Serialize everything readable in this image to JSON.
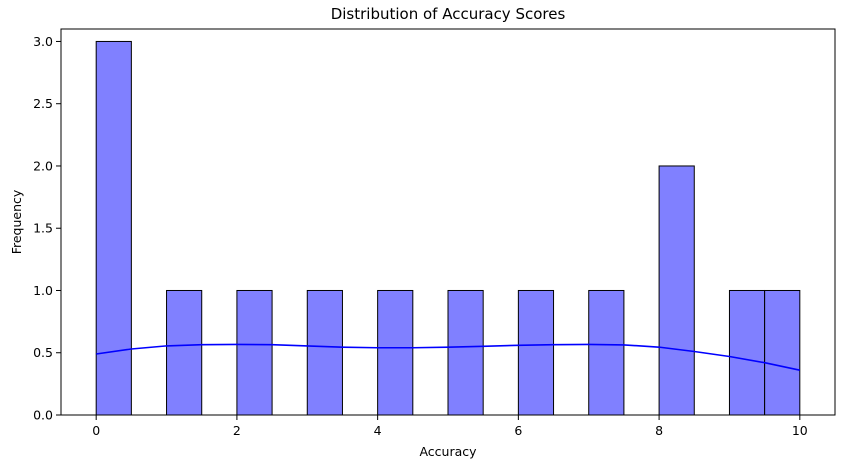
{
  "chart_data": {
    "type": "bar",
    "title": "Distribution of Accuracy Scores",
    "xlabel": "Accuracy",
    "ylabel": "Frequency",
    "xlim": [
      -0.5,
      10.5
    ],
    "ylim": [
      0,
      3.1
    ],
    "xticks": [
      0,
      2,
      4,
      6,
      8,
      10
    ],
    "yticks": [
      0.0,
      0.5,
      1.0,
      1.5,
      2.0,
      2.5,
      3.0
    ],
    "xtick_labels": [
      "0",
      "2",
      "4",
      "6",
      "8",
      "10"
    ],
    "ytick_labels": [
      "0.0",
      "0.5",
      "1.0",
      "1.5",
      "2.0",
      "2.5",
      "3.0"
    ],
    "grid": false,
    "bar_color": "#8080ff",
    "edge_color": "#000000",
    "kde_color": "#0000ff",
    "bins": [
      {
        "x0": 0.0,
        "x1": 0.5,
        "count": 3
      },
      {
        "x0": 1.0,
        "x1": 1.5,
        "count": 1
      },
      {
        "x0": 2.0,
        "x1": 2.5,
        "count": 1
      },
      {
        "x0": 3.0,
        "x1": 3.5,
        "count": 1
      },
      {
        "x0": 4.0,
        "x1": 4.5,
        "count": 1
      },
      {
        "x0": 5.0,
        "x1": 5.5,
        "count": 1
      },
      {
        "x0": 6.0,
        "x1": 6.5,
        "count": 1
      },
      {
        "x0": 7.0,
        "x1": 7.5,
        "count": 1
      },
      {
        "x0": 8.0,
        "x1": 8.5,
        "count": 2
      },
      {
        "x0": 9.0,
        "x1": 9.5,
        "count": 1
      },
      {
        "x0": 9.5,
        "x1": 10.0,
        "count": 1
      }
    ],
    "kde": {
      "x": [
        0,
        0.5,
        1,
        1.5,
        2,
        2.5,
        3,
        3.5,
        4,
        4.5,
        5,
        5.5,
        6,
        6.5,
        7,
        7.5,
        8,
        8.5,
        9,
        9.5,
        10
      ],
      "y": [
        0.49,
        0.53,
        0.555,
        0.565,
        0.567,
        0.565,
        0.555,
        0.545,
        0.54,
        0.54,
        0.545,
        0.552,
        0.56,
        0.565,
        0.567,
        0.563,
        0.545,
        0.51,
        0.47,
        0.42,
        0.36
      ]
    }
  }
}
